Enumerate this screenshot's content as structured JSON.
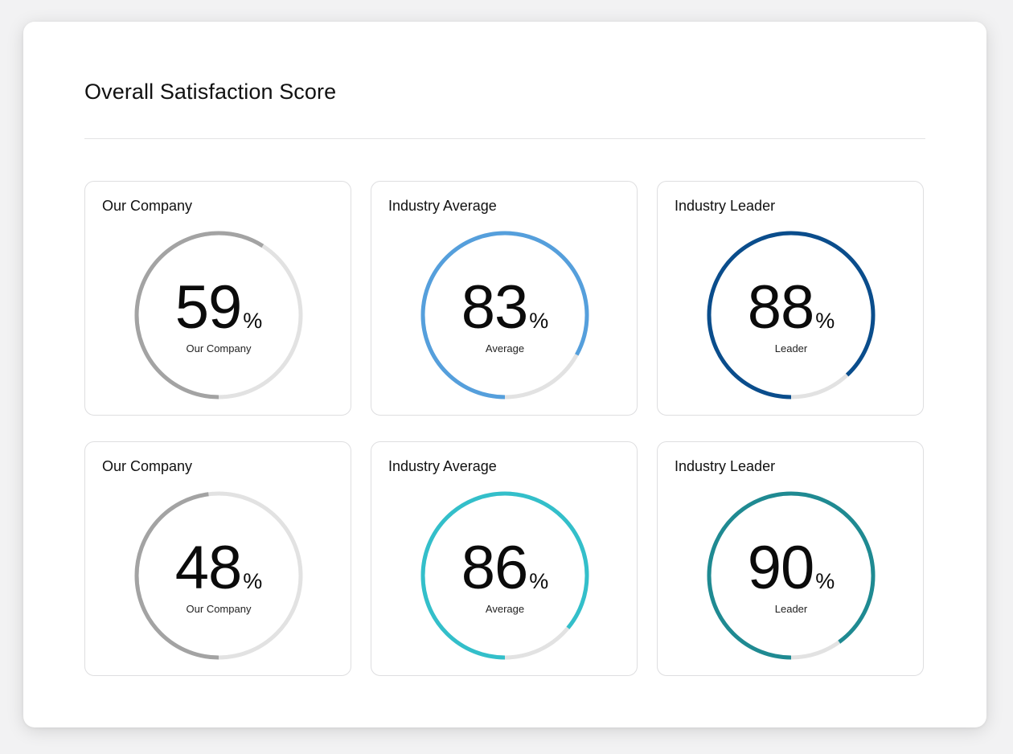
{
  "title": "Overall Satisfaction Score",
  "chart_data": {
    "type": "gauge",
    "value_unit": "%",
    "max": 100,
    "track_color": "#e2e2e2",
    "items": [
      {
        "label": "Our Company",
        "sub": "Our Company",
        "value": 59,
        "color": "#a3a3a3"
      },
      {
        "label": "Industry Average",
        "sub": "Average",
        "value": 83,
        "color": "#559fdc"
      },
      {
        "label": "Industry Leader",
        "sub": "Leader",
        "value": 88,
        "color": "#0a4d8c"
      },
      {
        "label": "Our Company",
        "sub": "Our Company",
        "value": 48,
        "color": "#a3a3a3"
      },
      {
        "label": "Industry Average",
        "sub": "Average",
        "value": 86,
        "color": "#33bfca"
      },
      {
        "label": "Industry Leader",
        "sub": "Leader",
        "value": 90,
        "color": "#1f8a92"
      }
    ]
  }
}
